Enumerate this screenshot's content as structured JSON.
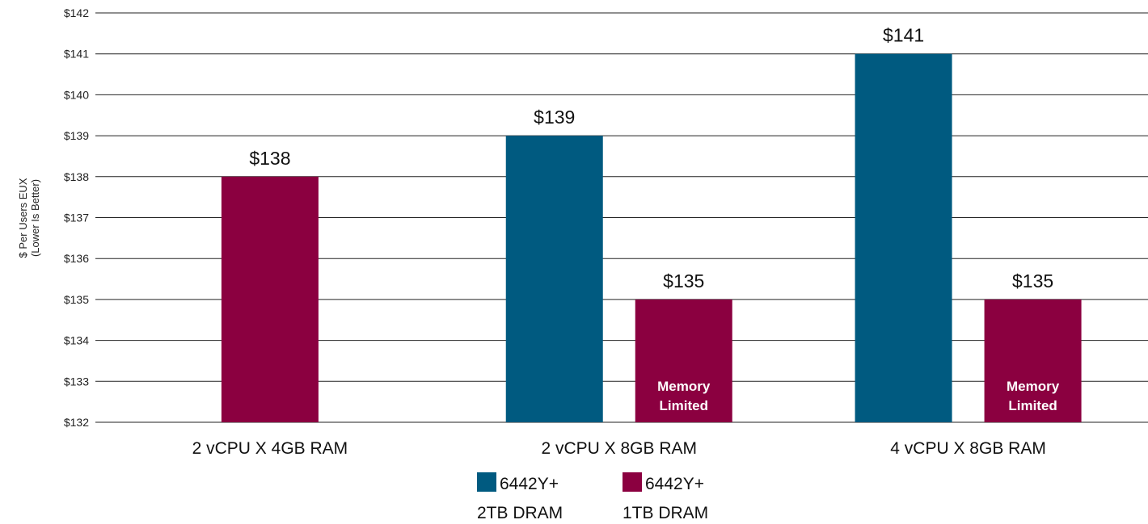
{
  "chart_data": {
    "type": "bar",
    "title": "",
    "xlabel": "",
    "ylabel": [
      "$ Per Users EUX",
      "(Lower Is Better)"
    ],
    "ylim": [
      132,
      142
    ],
    "yticks": [
      132,
      133,
      134,
      135,
      136,
      137,
      138,
      139,
      140,
      141,
      142
    ],
    "ytick_prefix": "$",
    "grid": true,
    "legend_placement": "bottom-center",
    "categories": [
      "2 vCPU X 4GB RAM",
      "2 vCPU X 8GB RAM",
      "4 vCPU X 8GB RAM"
    ],
    "series": [
      {
        "name": [
          "6442Y+",
          "2TB DRAM"
        ],
        "color": "#005a80",
        "values": [
          null,
          139,
          141
        ],
        "data_labels": [
          null,
          "$139",
          "$141"
        ],
        "annotations": [
          null,
          null,
          null
        ]
      },
      {
        "name": [
          "6442Y+",
          "1TB DRAM"
        ],
        "color": "#8b0040",
        "values": [
          138,
          135,
          135
        ],
        "data_labels": [
          "$138",
          "$135",
          "$135"
        ],
        "annotations": [
          null,
          [
            "Memory",
            "Limited"
          ],
          [
            "Memory",
            "Limited"
          ]
        ]
      }
    ]
  }
}
